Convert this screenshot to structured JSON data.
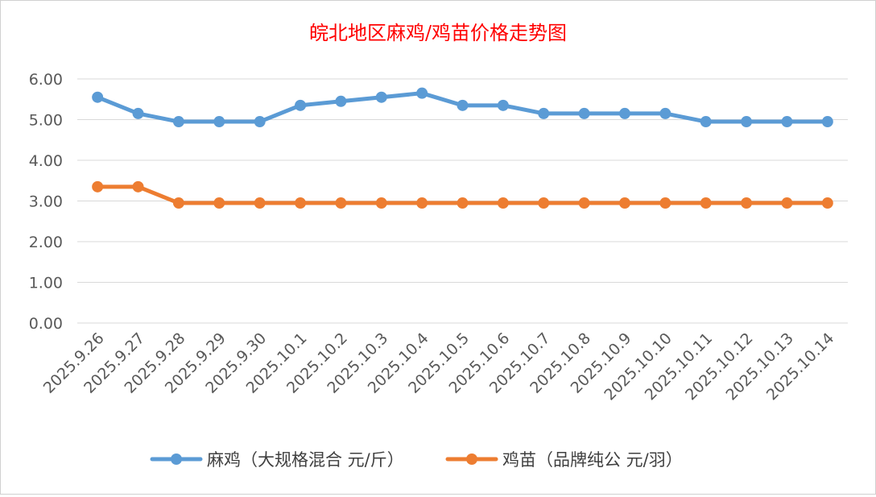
{
  "chart_data": {
    "type": "line",
    "title": "皖北地区麻鸡/鸡苗价格走势图",
    "xlabel": "",
    "ylabel": "",
    "ylim": [
      0,
      6
    ],
    "y_ticks": [
      "0.00",
      "1.00",
      "2.00",
      "3.00",
      "4.00",
      "5.00",
      "6.00"
    ],
    "grid": true,
    "legend_position": "bottom",
    "categories": [
      "2025.9.26",
      "2025.9.27",
      "2025.9.28",
      "2025.9.29",
      "2025.9.30",
      "2025.10.1",
      "2025.10.2",
      "2025.10.3",
      "2025.10.4",
      "2025.10.5",
      "2025.10.6",
      "2025.10.7",
      "2025.10.8",
      "2025.10.9",
      "2025.10.10",
      "2025.10.11",
      "2025.10.12",
      "2025.10.13",
      "2025.10.14"
    ],
    "series": [
      {
        "name": "麻鸡（大规格混合 元/斤）",
        "color": "#5b9bd5",
        "values": [
          5.55,
          5.15,
          4.95,
          4.95,
          4.95,
          5.35,
          5.45,
          5.55,
          5.65,
          5.35,
          5.35,
          5.15,
          5.15,
          5.15,
          5.15,
          4.95,
          4.95,
          4.95,
          4.95
        ]
      },
      {
        "name": "鸡苗（品牌纯公 元/羽）",
        "color": "#ed7d31",
        "values": [
          3.35,
          3.35,
          2.95,
          2.95,
          2.95,
          2.95,
          2.95,
          2.95,
          2.95,
          2.95,
          2.95,
          2.95,
          2.95,
          2.95,
          2.95,
          2.95,
          2.95,
          2.95,
          2.95
        ]
      }
    ]
  }
}
